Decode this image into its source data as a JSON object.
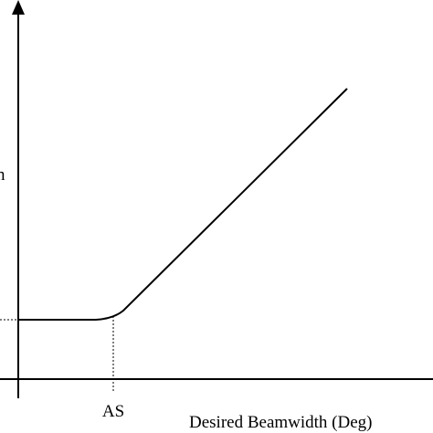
{
  "axes": {
    "y_label": "n",
    "marker_label": "AS",
    "x_label": "Desired Beamwidth (Deg)"
  }
}
